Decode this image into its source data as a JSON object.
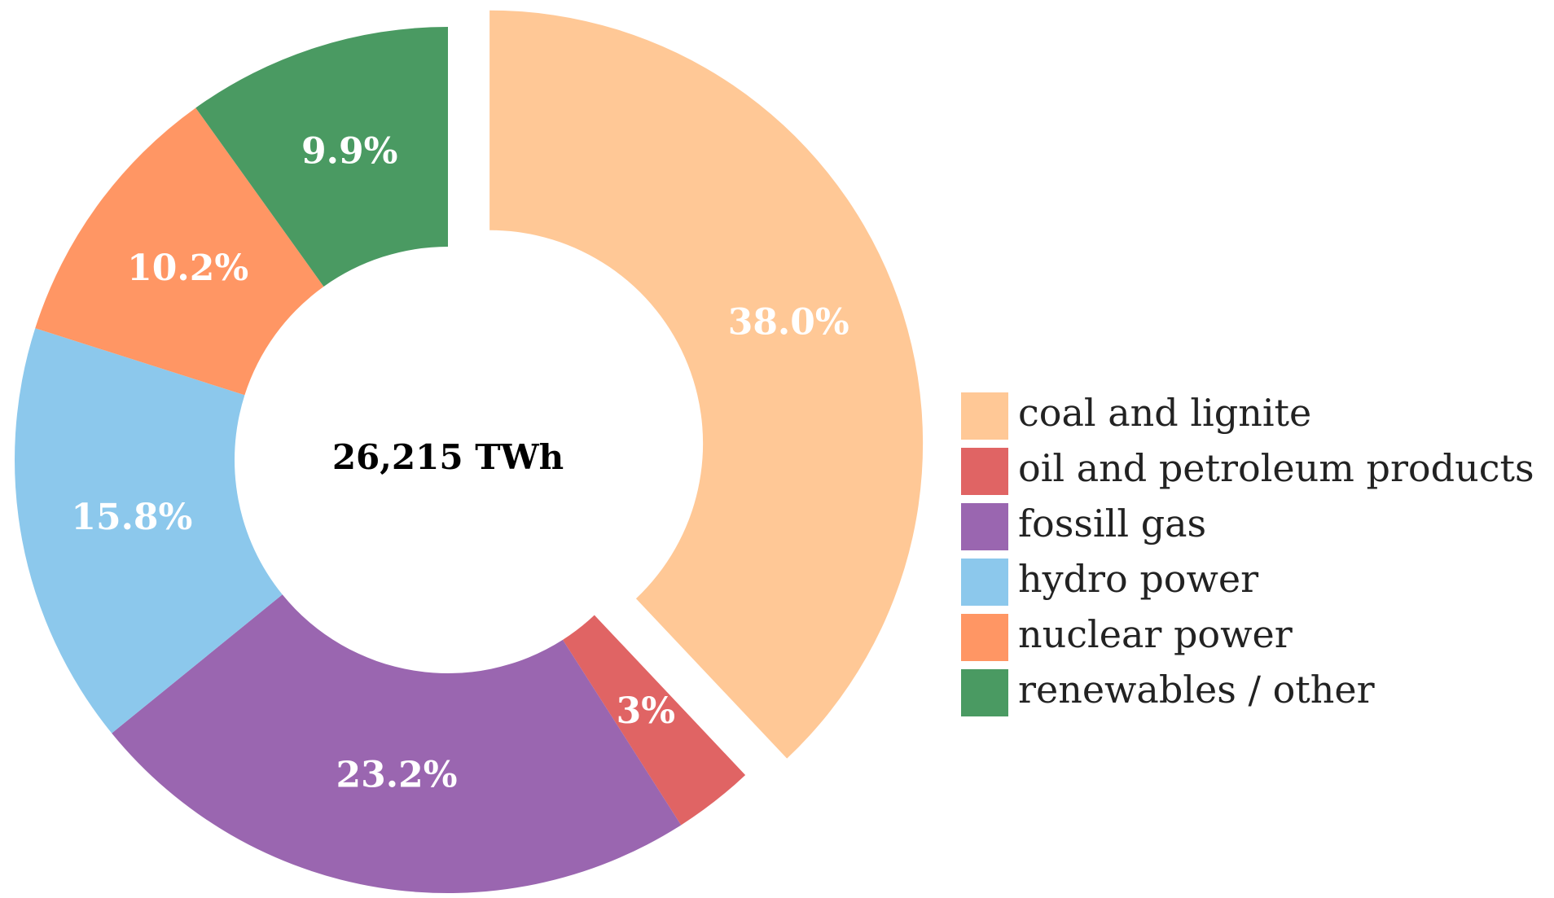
{
  "chart_data": {
    "type": "pie",
    "center_label": "26,215 TWh",
    "legend_position": "right",
    "slices": [
      {
        "name": "coal and lignite",
        "value": 38.0,
        "label": "38.0%",
        "color": "#FFC896",
        "exploded": true
      },
      {
        "name": "oil and petroleum products",
        "value": 3.0,
        "label": "3%",
        "color": "#E06464",
        "exploded": false
      },
      {
        "name": "fossill gas",
        "value": 23.2,
        "label": "23.2%",
        "color": "#9A66B0",
        "exploded": false
      },
      {
        "name": "hydro power",
        "value": 15.8,
        "label": "15.8%",
        "color": "#8CC8EC",
        "exploded": false
      },
      {
        "name": "nuclear power",
        "value": 10.2,
        "label": "10.2%",
        "color": "#FF9664",
        "exploded": false
      },
      {
        "name": "renewables / other",
        "value": 9.9,
        "label": "9.9%",
        "color": "#4A9A62",
        "exploded": false
      }
    ]
  }
}
